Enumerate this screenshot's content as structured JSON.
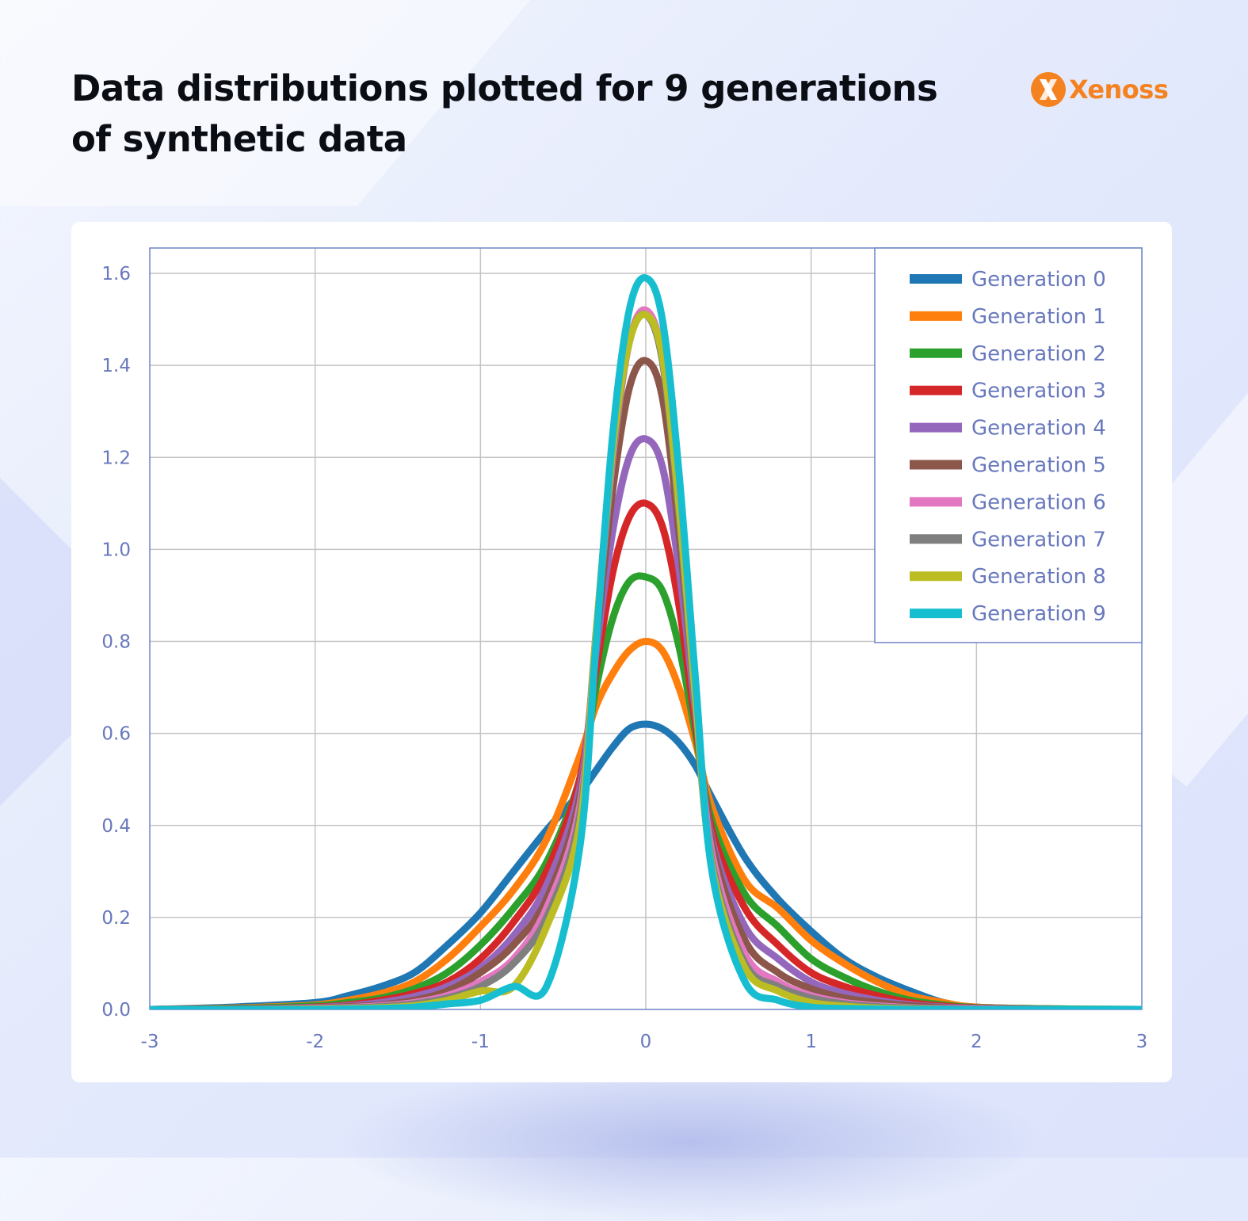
{
  "title": "Data distributions plotted for 9 generations of synthetic data",
  "brand": {
    "name": "Xenoss",
    "icon": "x-logo-icon",
    "color": "#f58220"
  },
  "chart_data": {
    "type": "line",
    "title": "Data distributions plotted for 9 generations of synthetic data",
    "xlabel": "",
    "ylabel": "",
    "xlim": [
      -3,
      3
    ],
    "ylim": [
      0,
      1.65
    ],
    "xticks": [
      -3,
      -2,
      -1,
      0,
      1,
      2,
      3
    ],
    "xtick_labels": [
      "-3",
      "-2",
      "-1",
      "0",
      "1",
      "2",
      "3"
    ],
    "yticks": [
      0,
      0.2,
      0.4,
      0.6,
      0.8,
      1.0,
      1.2,
      1.4,
      1.6
    ],
    "ytick_labels": [
      "0.0",
      "0.2",
      "0.4",
      "0.6",
      "0.8",
      "1.0",
      "1.2",
      "1.4",
      "1.6"
    ],
    "grid": true,
    "legend_position": "top-right",
    "x": [
      -3,
      -2.5,
      -2,
      -1.8,
      -1.6,
      -1.4,
      -1.2,
      -1,
      -0.8,
      -0.6,
      -0.4,
      -0.3,
      -0.2,
      -0.1,
      0,
      0.1,
      0.2,
      0.3,
      0.4,
      0.6,
      0.8,
      1,
      1.2,
      1.4,
      1.6,
      1.8,
      2,
      2.5,
      3
    ],
    "series": [
      {
        "name": "Generation 0",
        "color": "#1f77b4",
        "values": [
          0.0,
          0.005,
          0.015,
          0.03,
          0.05,
          0.08,
          0.14,
          0.21,
          0.3,
          0.39,
          0.47,
          0.52,
          0.57,
          0.61,
          0.62,
          0.61,
          0.58,
          0.53,
          0.46,
          0.33,
          0.24,
          0.17,
          0.11,
          0.07,
          0.04,
          0.015,
          0.005,
          0.001,
          0.0
        ]
      },
      {
        "name": "Generation 1",
        "color": "#ff7f0e",
        "values": [
          0.0,
          0.003,
          0.01,
          0.02,
          0.035,
          0.06,
          0.11,
          0.18,
          0.26,
          0.37,
          0.55,
          0.66,
          0.73,
          0.78,
          0.8,
          0.78,
          0.7,
          0.58,
          0.44,
          0.28,
          0.22,
          0.15,
          0.1,
          0.06,
          0.03,
          0.015,
          0.005,
          0.001,
          0.0
        ]
      },
      {
        "name": "Generation 2",
        "color": "#2ca02c",
        "values": [
          0.0,
          0.002,
          0.008,
          0.015,
          0.025,
          0.045,
          0.08,
          0.14,
          0.22,
          0.32,
          0.5,
          0.7,
          0.85,
          0.93,
          0.94,
          0.91,
          0.79,
          0.6,
          0.41,
          0.25,
          0.18,
          0.11,
          0.07,
          0.04,
          0.02,
          0.01,
          0.004,
          0.001,
          0.0
        ]
      },
      {
        "name": "Generation 3",
        "color": "#d62728",
        "values": [
          0.0,
          0.001,
          0.005,
          0.01,
          0.02,
          0.035,
          0.06,
          0.11,
          0.19,
          0.3,
          0.5,
          0.74,
          0.95,
          1.07,
          1.1,
          1.05,
          0.88,
          0.62,
          0.39,
          0.22,
          0.14,
          0.08,
          0.05,
          0.03,
          0.015,
          0.007,
          0.003,
          0.0,
          0.0
        ]
      },
      {
        "name": "Generation 4",
        "color": "#9467bd",
        "values": [
          0.0,
          0.001,
          0.004,
          0.008,
          0.015,
          0.028,
          0.05,
          0.09,
          0.16,
          0.27,
          0.48,
          0.78,
          1.04,
          1.2,
          1.24,
          1.18,
          0.96,
          0.65,
          0.37,
          0.18,
          0.11,
          0.06,
          0.035,
          0.02,
          0.01,
          0.005,
          0.002,
          0.0,
          0.0
        ]
      },
      {
        "name": "Generation 5",
        "color": "#8c564b",
        "values": [
          0.0,
          0.001,
          0.003,
          0.006,
          0.01,
          0.02,
          0.04,
          0.08,
          0.14,
          0.24,
          0.46,
          0.8,
          1.13,
          1.35,
          1.41,
          1.33,
          1.04,
          0.67,
          0.36,
          0.15,
          0.08,
          0.045,
          0.025,
          0.015,
          0.008,
          0.004,
          0.001,
          0.0,
          0.0
        ]
      },
      {
        "name": "Generation 6",
        "color": "#e377c2",
        "values": [
          0.0,
          0.0,
          0.002,
          0.004,
          0.008,
          0.015,
          0.03,
          0.06,
          0.11,
          0.22,
          0.44,
          0.82,
          1.2,
          1.45,
          1.52,
          1.42,
          1.09,
          0.68,
          0.34,
          0.12,
          0.06,
          0.03,
          0.015,
          0.008,
          0.004,
          0.002,
          0.001,
          0.0,
          0.0
        ]
      },
      {
        "name": "Generation 7",
        "color": "#7f7f7f",
        "values": [
          0.0,
          0.0,
          0.001,
          0.003,
          0.006,
          0.012,
          0.025,
          0.05,
          0.1,
          0.2,
          0.42,
          0.82,
          1.21,
          1.45,
          1.51,
          1.41,
          1.08,
          0.66,
          0.32,
          0.1,
          0.05,
          0.025,
          0.012,
          0.006,
          0.003,
          0.001,
          0.0,
          0.0,
          0.0
        ]
      },
      {
        "name": "Generation 8",
        "color": "#bcbd22",
        "values": [
          0.0,
          0.0,
          0.001,
          0.002,
          0.004,
          0.008,
          0.02,
          0.04,
          0.05,
          0.18,
          0.4,
          0.82,
          1.22,
          1.45,
          1.51,
          1.42,
          1.1,
          0.68,
          0.31,
          0.09,
          0.04,
          0.015,
          0.007,
          0.003,
          0.001,
          0.0,
          0.0,
          0.0,
          0.0
        ]
      },
      {
        "name": "Generation 9",
        "color": "#17becf",
        "values": [
          0.0,
          0.0,
          0.0,
          0.001,
          0.002,
          0.005,
          0.012,
          0.02,
          0.05,
          0.05,
          0.35,
          0.8,
          1.25,
          1.52,
          1.59,
          1.5,
          1.17,
          0.72,
          0.3,
          0.06,
          0.02,
          0.005,
          0.002,
          0.001,
          0.0,
          0.0,
          0.0,
          0.0,
          0.0
        ]
      }
    ]
  }
}
